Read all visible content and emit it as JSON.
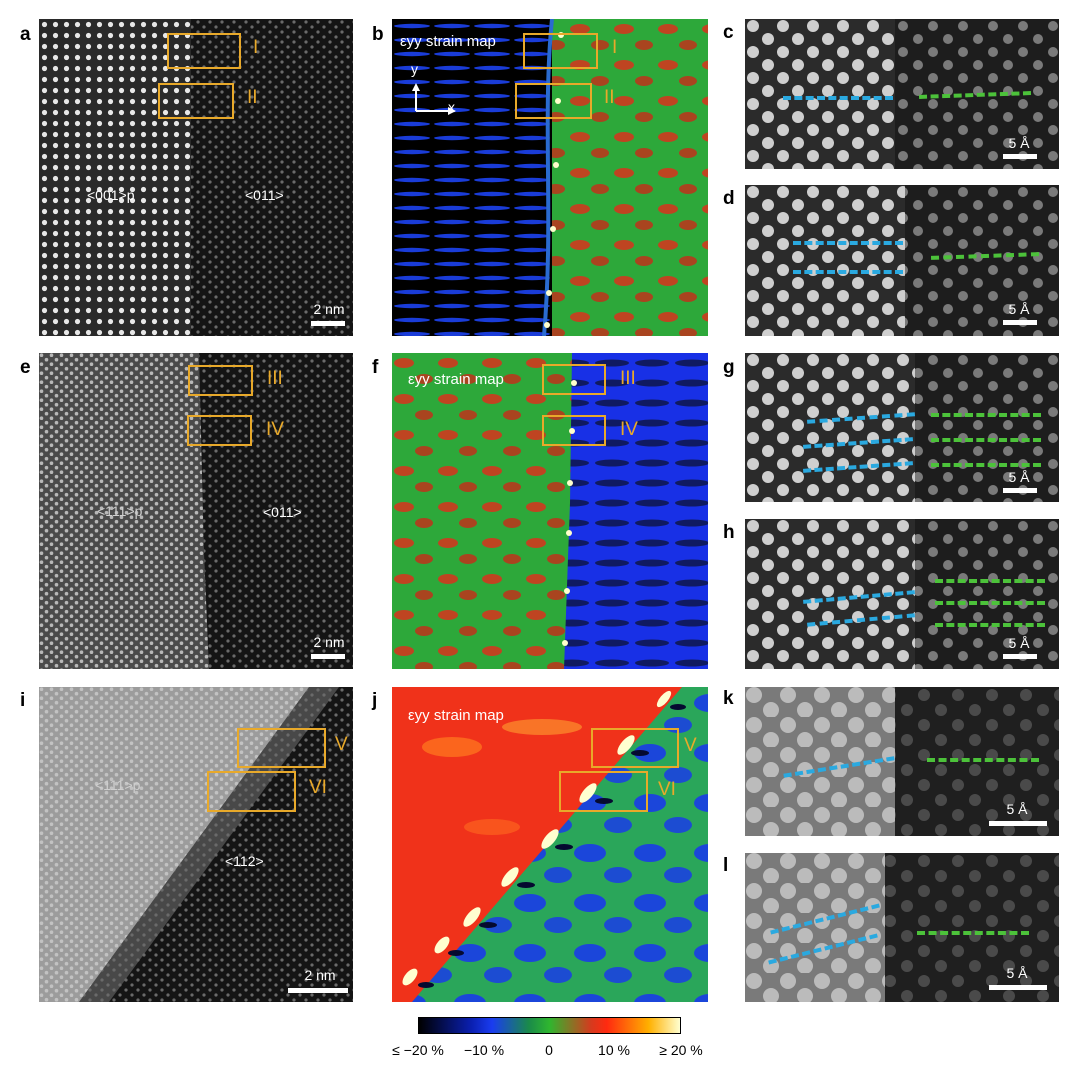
{
  "panel_labels": {
    "a": "a",
    "b": "b",
    "c": "c",
    "d": "d",
    "e": "e",
    "f": "f",
    "g": "g",
    "h": "h",
    "i": "i",
    "j": "j",
    "k": "k",
    "l": "l"
  },
  "boxes": {
    "I": "I",
    "II": "II",
    "III": "III",
    "IV": "IV",
    "V": "V",
    "VI": "VI"
  },
  "directions": {
    "a_left": "<001>p",
    "a_right": "<011>",
    "e_left": "<111>p",
    "e_right": "<011>",
    "i_left": "<111>p",
    "i_right": "<112>"
  },
  "scale_bars": {
    "nm": "2 nm",
    "angstrom": "5 Å"
  },
  "strain_title": "εyy strain map",
  "axes": {
    "x": "x",
    "y": "y"
  },
  "colorbar": {
    "ticks": [
      "≤ −20 %",
      "−10 %",
      "0",
      "10 %",
      "≥ 20 %"
    ],
    "colors": [
      "#000000",
      "#1a3cf0",
      "#2fb62f",
      "#ff2a10",
      "#ffffd0"
    ]
  },
  "colors": {
    "box": "#e8a92a",
    "blue_dash": "#2aa9e0",
    "green_dash": "#4cc23a"
  }
}
